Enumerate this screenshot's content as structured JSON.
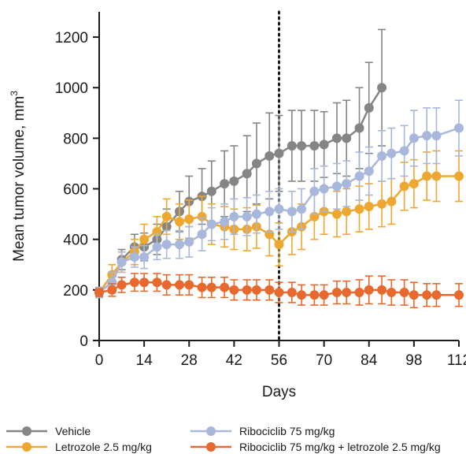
{
  "chart_data": {
    "type": "line",
    "xlabel": "Days",
    "ylabel": "Mean tumor volume, mm",
    "ylabel_sup": "3",
    "xlim": [
      0,
      112
    ],
    "ylim": [
      0,
      1300
    ],
    "xticks": [
      0,
      14,
      28,
      42,
      56,
      70,
      84,
      98,
      112
    ],
    "yticks": [
      0,
      200,
      400,
      600,
      800,
      1000,
      1200
    ],
    "vline_x": 56,
    "grid": false,
    "legend_position": "bottom",
    "series": [
      {
        "name": "Vehicle",
        "color": "#858585",
        "x": [
          0,
          4,
          7,
          11,
          14,
          18,
          21,
          25,
          28,
          32,
          35,
          39,
          42,
          46,
          49,
          53,
          56,
          60,
          63,
          67,
          70,
          74,
          77,
          81,
          84,
          88
        ],
        "y": [
          190,
          230,
          320,
          370,
          370,
          400,
          450,
          510,
          550,
          570,
          590,
          620,
          630,
          660,
          700,
          730,
          740,
          770,
          770,
          770,
          775,
          800,
          800,
          840,
          920,
          1000
        ],
        "err": [
          20,
          40,
          40,
          50,
          55,
          60,
          70,
          80,
          100,
          110,
          120,
          130,
          140,
          150,
          160,
          170,
          150,
          140,
          140,
          140,
          130,
          140,
          150,
          160,
          180,
          230
        ]
      },
      {
        "name": "Letrozole 2.5 mg/kg",
        "color": "#eea730",
        "x": [
          0,
          4,
          7,
          11,
          14,
          18,
          21,
          25,
          28,
          32,
          35,
          39,
          42,
          46,
          49,
          53,
          56,
          60,
          63,
          67,
          70,
          74,
          77,
          81,
          84,
          88,
          91,
          95,
          98,
          102,
          105,
          112
        ],
        "y": [
          190,
          260,
          310,
          350,
          400,
          430,
          490,
          470,
          480,
          490,
          460,
          450,
          440,
          440,
          450,
          420,
          380,
          430,
          450,
          490,
          510,
          500,
          510,
          520,
          530,
          540,
          550,
          610,
          620,
          650,
          650,
          650
        ],
        "err": [
          20,
          40,
          40,
          50,
          60,
          60,
          70,
          70,
          75,
          80,
          80,
          80,
          80,
          85,
          85,
          85,
          85,
          90,
          90,
          90,
          90,
          90,
          90,
          90,
          90,
          90,
          90,
          95,
          95,
          95,
          100,
          100
        ]
      },
      {
        "name": "Ribociclib 75 mg/kg",
        "color": "#a8b8dc",
        "x": [
          0,
          4,
          7,
          11,
          14,
          18,
          21,
          25,
          28,
          32,
          35,
          39,
          42,
          46,
          49,
          53,
          56,
          60,
          63,
          67,
          70,
          74,
          77,
          81,
          84,
          88,
          91,
          95,
          98,
          102,
          105,
          112
        ],
        "y": [
          190,
          230,
          310,
          330,
          330,
          370,
          380,
          380,
          390,
          420,
          460,
          470,
          490,
          490,
          500,
          510,
          520,
          510,
          520,
          590,
          600,
          610,
          620,
          650,
          670,
          730,
          740,
          750,
          800,
          810,
          810,
          840
        ],
        "err": [
          20,
          40,
          40,
          40,
          45,
          50,
          55,
          55,
          60,
          65,
          65,
          70,
          70,
          75,
          75,
          80,
          80,
          80,
          80,
          90,
          90,
          90,
          90,
          95,
          95,
          100,
          100,
          100,
          110,
          110,
          110,
          110
        ]
      },
      {
        "name": "Ribociclib 75 mg/kg + letrozole 2.5 mg/kg",
        "color": "#e8692e",
        "x": [
          0,
          4,
          7,
          11,
          14,
          18,
          21,
          25,
          28,
          32,
          35,
          39,
          42,
          46,
          49,
          53,
          56,
          60,
          63,
          67,
          70,
          74,
          77,
          81,
          84,
          88,
          91,
          95,
          98,
          102,
          105,
          112
        ],
        "y": [
          190,
          200,
          220,
          230,
          230,
          230,
          220,
          220,
          220,
          210,
          210,
          210,
          200,
          200,
          200,
          200,
          190,
          190,
          180,
          180,
          180,
          190,
          190,
          190,
          200,
          200,
          190,
          190,
          180,
          180,
          180,
          180
        ],
        "err": [
          15,
          25,
          30,
          35,
          35,
          35,
          40,
          40,
          40,
          40,
          40,
          40,
          40,
          40,
          40,
          40,
          40,
          40,
          40,
          40,
          40,
          45,
          45,
          50,
          55,
          55,
          50,
          50,
          50,
          45,
          45,
          45
        ]
      }
    ]
  }
}
